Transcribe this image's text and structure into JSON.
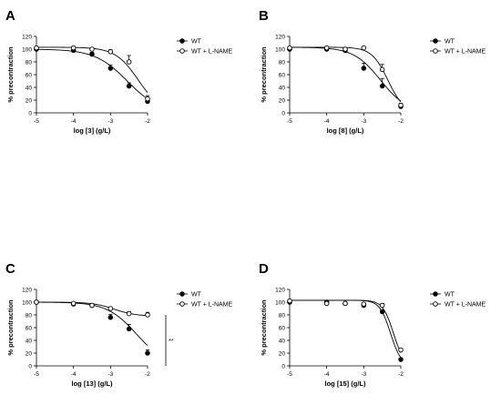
{
  "figure": {
    "panels": [
      "A",
      "B",
      "C",
      "D"
    ]
  },
  "chart_data": [
    {
      "type": "line",
      "panel_label": "A",
      "xlabel": "log [3] (g/L)",
      "ylabel": "% precontraction",
      "xlim": [
        -5,
        -2
      ],
      "ylim": [
        0,
        120
      ],
      "xticks": [
        -5,
        -4,
        -3,
        -2
      ],
      "yticks": [
        0,
        20,
        40,
        60,
        80,
        100,
        120
      ],
      "grid": false,
      "legend_position": "right",
      "annotation": "",
      "series": [
        {
          "name": "WT",
          "marker": "filled-circle",
          "color": "#000000",
          "x": [
            -5,
            -4,
            -3.5,
            -3,
            -2.5,
            -2
          ],
          "y": [
            100,
            98,
            92,
            70,
            42,
            18
          ],
          "err": [
            0,
            2,
            3,
            5,
            5,
            3
          ],
          "fit_top": 100,
          "fit_bottom": 0,
          "fit_logec50": -2.55,
          "fit_hill": 1.0
        },
        {
          "name": "WT + L-NAME",
          "marker": "open-circle",
          "color": "#000000",
          "x": [
            -5,
            -4,
            -3.5,
            -3,
            -2.5,
            -2
          ],
          "y": [
            102,
            102,
            100,
            96,
            80,
            22
          ],
          "err": [
            0,
            2,
            2,
            3,
            10,
            5
          ],
          "fit_top": 103,
          "fit_bottom": 0,
          "fit_logec50": -2.25,
          "fit_hill": 1.4
        }
      ]
    },
    {
      "type": "line",
      "panel_label": "B",
      "xlabel": "log [8] (g/L)",
      "ylabel": "% precontraction",
      "xlim": [
        -5,
        -2
      ],
      "ylim": [
        0,
        120
      ],
      "xticks": [
        -5,
        -4,
        -3,
        -2
      ],
      "yticks": [
        0,
        20,
        40,
        60,
        80,
        100,
        120
      ],
      "grid": false,
      "legend_position": "right",
      "annotation": "",
      "series": [
        {
          "name": "WT",
          "marker": "filled-circle",
          "color": "#000000",
          "x": [
            -5,
            -4,
            -3.5,
            -3,
            -2.5,
            -2
          ],
          "y": [
            100,
            100,
            98,
            70,
            42,
            10
          ],
          "err": [
            0,
            3,
            3,
            8,
            12,
            3
          ],
          "fit_top": 103,
          "fit_bottom": 0,
          "fit_logec50": -2.55,
          "fit_hill": 1.2
        },
        {
          "name": "WT + L-NAME",
          "marker": "open-circle",
          "color": "#000000",
          "x": [
            -5,
            -4,
            -3.5,
            -3,
            -2.5,
            -2
          ],
          "y": [
            102,
            102,
            100,
            102,
            68,
            12
          ],
          "err": [
            0,
            2,
            2,
            2,
            8,
            3
          ],
          "fit_top": 103,
          "fit_bottom": 0,
          "fit_logec50": -2.35,
          "fit_hill": 2.0
        }
      ]
    },
    {
      "type": "line",
      "panel_label": "C",
      "xlabel": "log [13] (g/L)",
      "ylabel": "% precontraction",
      "xlim": [
        -5,
        -2
      ],
      "ylim": [
        0,
        120
      ],
      "xticks": [
        -5,
        -4,
        -3,
        -2
      ],
      "yticks": [
        0,
        20,
        40,
        60,
        80,
        100,
        120
      ],
      "grid": false,
      "legend_position": "right",
      "annotation": "**",
      "series": [
        {
          "name": "WT",
          "marker": "filled-circle",
          "color": "#000000",
          "x": [
            -5,
            -4,
            -3.5,
            -3,
            -2.5,
            -2
          ],
          "y": [
            100,
            97,
            95,
            76,
            58,
            20
          ],
          "err": [
            0,
            2,
            2,
            5,
            7,
            5
          ],
          "fit_top": 100,
          "fit_bottom": 0,
          "fit_logec50": -2.3,
          "fit_hill": 1.1
        },
        {
          "name": "WT + L-NAME",
          "marker": "open-circle",
          "color": "#000000",
          "x": [
            -5,
            -4,
            -3.5,
            -3,
            -2.5,
            -2
          ],
          "y": [
            100,
            98,
            95,
            90,
            82,
            80
          ],
          "err": [
            0,
            2,
            2,
            2,
            3,
            4
          ],
          "fit_top": 100,
          "fit_bottom": 78,
          "fit_logec50": -2.9,
          "fit_hill": 1.5
        }
      ]
    },
    {
      "type": "line",
      "panel_label": "D",
      "xlabel": "log [15] (g/L)",
      "ylabel": "% precontraction",
      "xlim": [
        -5,
        -2
      ],
      "ylim": [
        0,
        120
      ],
      "xticks": [
        -5,
        -4,
        -3,
        -2
      ],
      "yticks": [
        0,
        20,
        40,
        60,
        80,
        100,
        120
      ],
      "grid": false,
      "legend_position": "right",
      "annotation": "",
      "series": [
        {
          "name": "WT",
          "marker": "filled-circle",
          "color": "#000000",
          "x": [
            -5,
            -4,
            -3.5,
            -3,
            -2.5,
            -2
          ],
          "y": [
            100,
            100,
            98,
            95,
            85,
            10
          ],
          "err": [
            0,
            2,
            2,
            2,
            3,
            2
          ],
          "fit_top": 103,
          "fit_bottom": 0,
          "fit_logec50": -2.28,
          "fit_hill": 3.0
        },
        {
          "name": "WT + L-NAME",
          "marker": "open-circle",
          "color": "#000000",
          "x": [
            -5,
            -4,
            -3.5,
            -3,
            -2.5,
            -2
          ],
          "y": [
            102,
            98,
            98,
            97,
            95,
            25
          ],
          "err": [
            0,
            2,
            2,
            2,
            3,
            2
          ],
          "fit_top": 103,
          "fit_bottom": 0,
          "fit_logec50": -2.2,
          "fit_hill": 3.0
        }
      ]
    }
  ]
}
